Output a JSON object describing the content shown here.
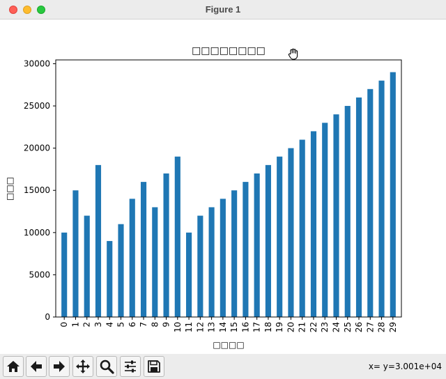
{
  "window": {
    "title": "Figure 1"
  },
  "status": {
    "coords": "x= y=3.001e+04"
  },
  "toolbar": {
    "buttons": [
      {
        "name": "home-button",
        "icon": "home-icon"
      },
      {
        "name": "back-button",
        "icon": "arrow-left-icon"
      },
      {
        "name": "forward-button",
        "icon": "arrow-right-icon"
      },
      {
        "name": "pan-button",
        "icon": "move-icon"
      },
      {
        "name": "zoom-button",
        "icon": "magnifier-icon"
      },
      {
        "name": "configure-subplots-button",
        "icon": "sliders-icon"
      },
      {
        "name": "save-button",
        "icon": "floppy-disk-icon"
      }
    ]
  },
  "chart_data": {
    "type": "bar",
    "title": "□□□□□□□□",
    "xlabel": "□□□□",
    "ylabel": "□□□",
    "categories": [
      "0",
      "1",
      "2",
      "3",
      "4",
      "5",
      "6",
      "7",
      "8",
      "9",
      "10",
      "11",
      "12",
      "13",
      "14",
      "15",
      "16",
      "17",
      "18",
      "19",
      "20",
      "21",
      "22",
      "23",
      "24",
      "25",
      "26",
      "27",
      "28",
      "29"
    ],
    "values": [
      10000,
      15000,
      12000,
      18000,
      9000,
      11000,
      14000,
      16000,
      13000,
      17000,
      19000,
      10000,
      12000,
      13000,
      14000,
      15000,
      16000,
      17000,
      18000,
      19000,
      20000,
      21000,
      22000,
      23000,
      24000,
      25000,
      26000,
      27000,
      28000,
      29000
    ],
    "yticks": [
      "0",
      "5000",
      "10000",
      "15000",
      "20000",
      "25000",
      "30000"
    ],
    "ylim": [
      0,
      30450
    ],
    "bar_color": "#1f77b4",
    "grid": false,
    "legend": "none"
  }
}
